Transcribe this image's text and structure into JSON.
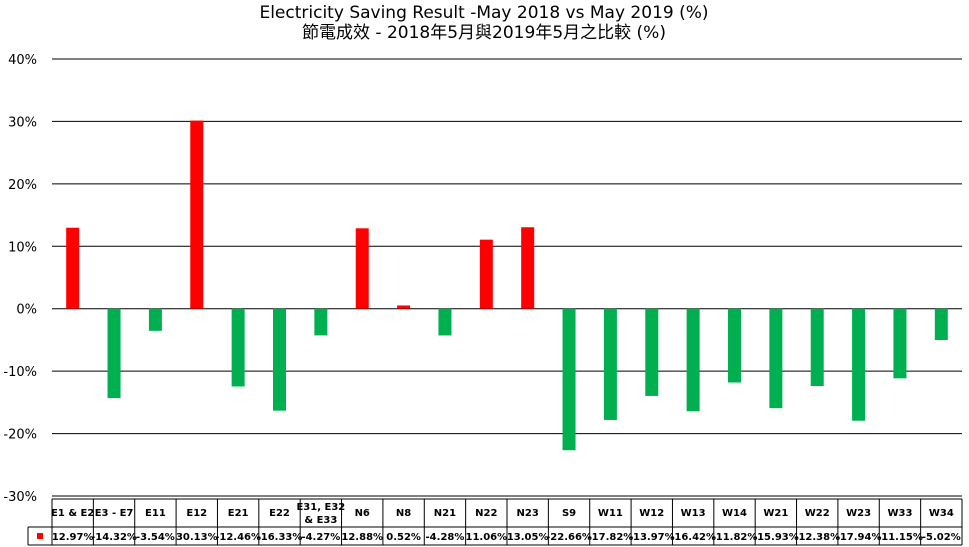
{
  "chart_data": {
    "type": "bar",
    "title": "Electricity Saving Result -May 2018 vs May 2019 (%)",
    "subtitle": "節電成效 - 2018年5月與2019年5月之比較 (%)",
    "y_tick_labels": [
      "40%",
      "30%",
      "20%",
      "10%",
      "0%",
      "-10%",
      "-20%",
      "-30%"
    ],
    "ylim": [
      -30,
      40
    ],
    "grid": true,
    "categories": [
      "E1 & E2",
      "E3 - E7",
      "E11",
      "E12",
      "E21",
      "E22",
      "E31, E32 & E33",
      "N6",
      "N8",
      "N21",
      "N22",
      "N23",
      "S9",
      "W11",
      "W12",
      "W13",
      "W14",
      "W21",
      "W22",
      "W23",
      "W33",
      "W34"
    ],
    "values": [
      12.97,
      -14.32,
      -3.54,
      30.13,
      -12.46,
      -16.33,
      -4.27,
      12.88,
      0.52,
      -4.28,
      11.06,
      13.05,
      -22.66,
      -17.82,
      -13.97,
      -16.42,
      -11.82,
      -15.93,
      -12.38,
      -17.94,
      -11.15,
      -5.02
    ],
    "value_labels": [
      "12.97%",
      "-14.32%",
      "-3.54%",
      "30.13%",
      "-12.46%",
      "-16.33%",
      "-4.27%",
      "12.88%",
      "0.52%",
      "-4.28%",
      "11.06%",
      "13.05%",
      "-22.66%",
      "-17.82%",
      "-13.97%",
      "-16.42%",
      "-11.82%",
      "-15.93%",
      "-12.38%",
      "-17.94%",
      "-11.15%",
      "-5.02%"
    ],
    "colors": {
      "positive": "#ff0000",
      "negative": "#00b050",
      "legend_marker": "#ff0000"
    }
  }
}
